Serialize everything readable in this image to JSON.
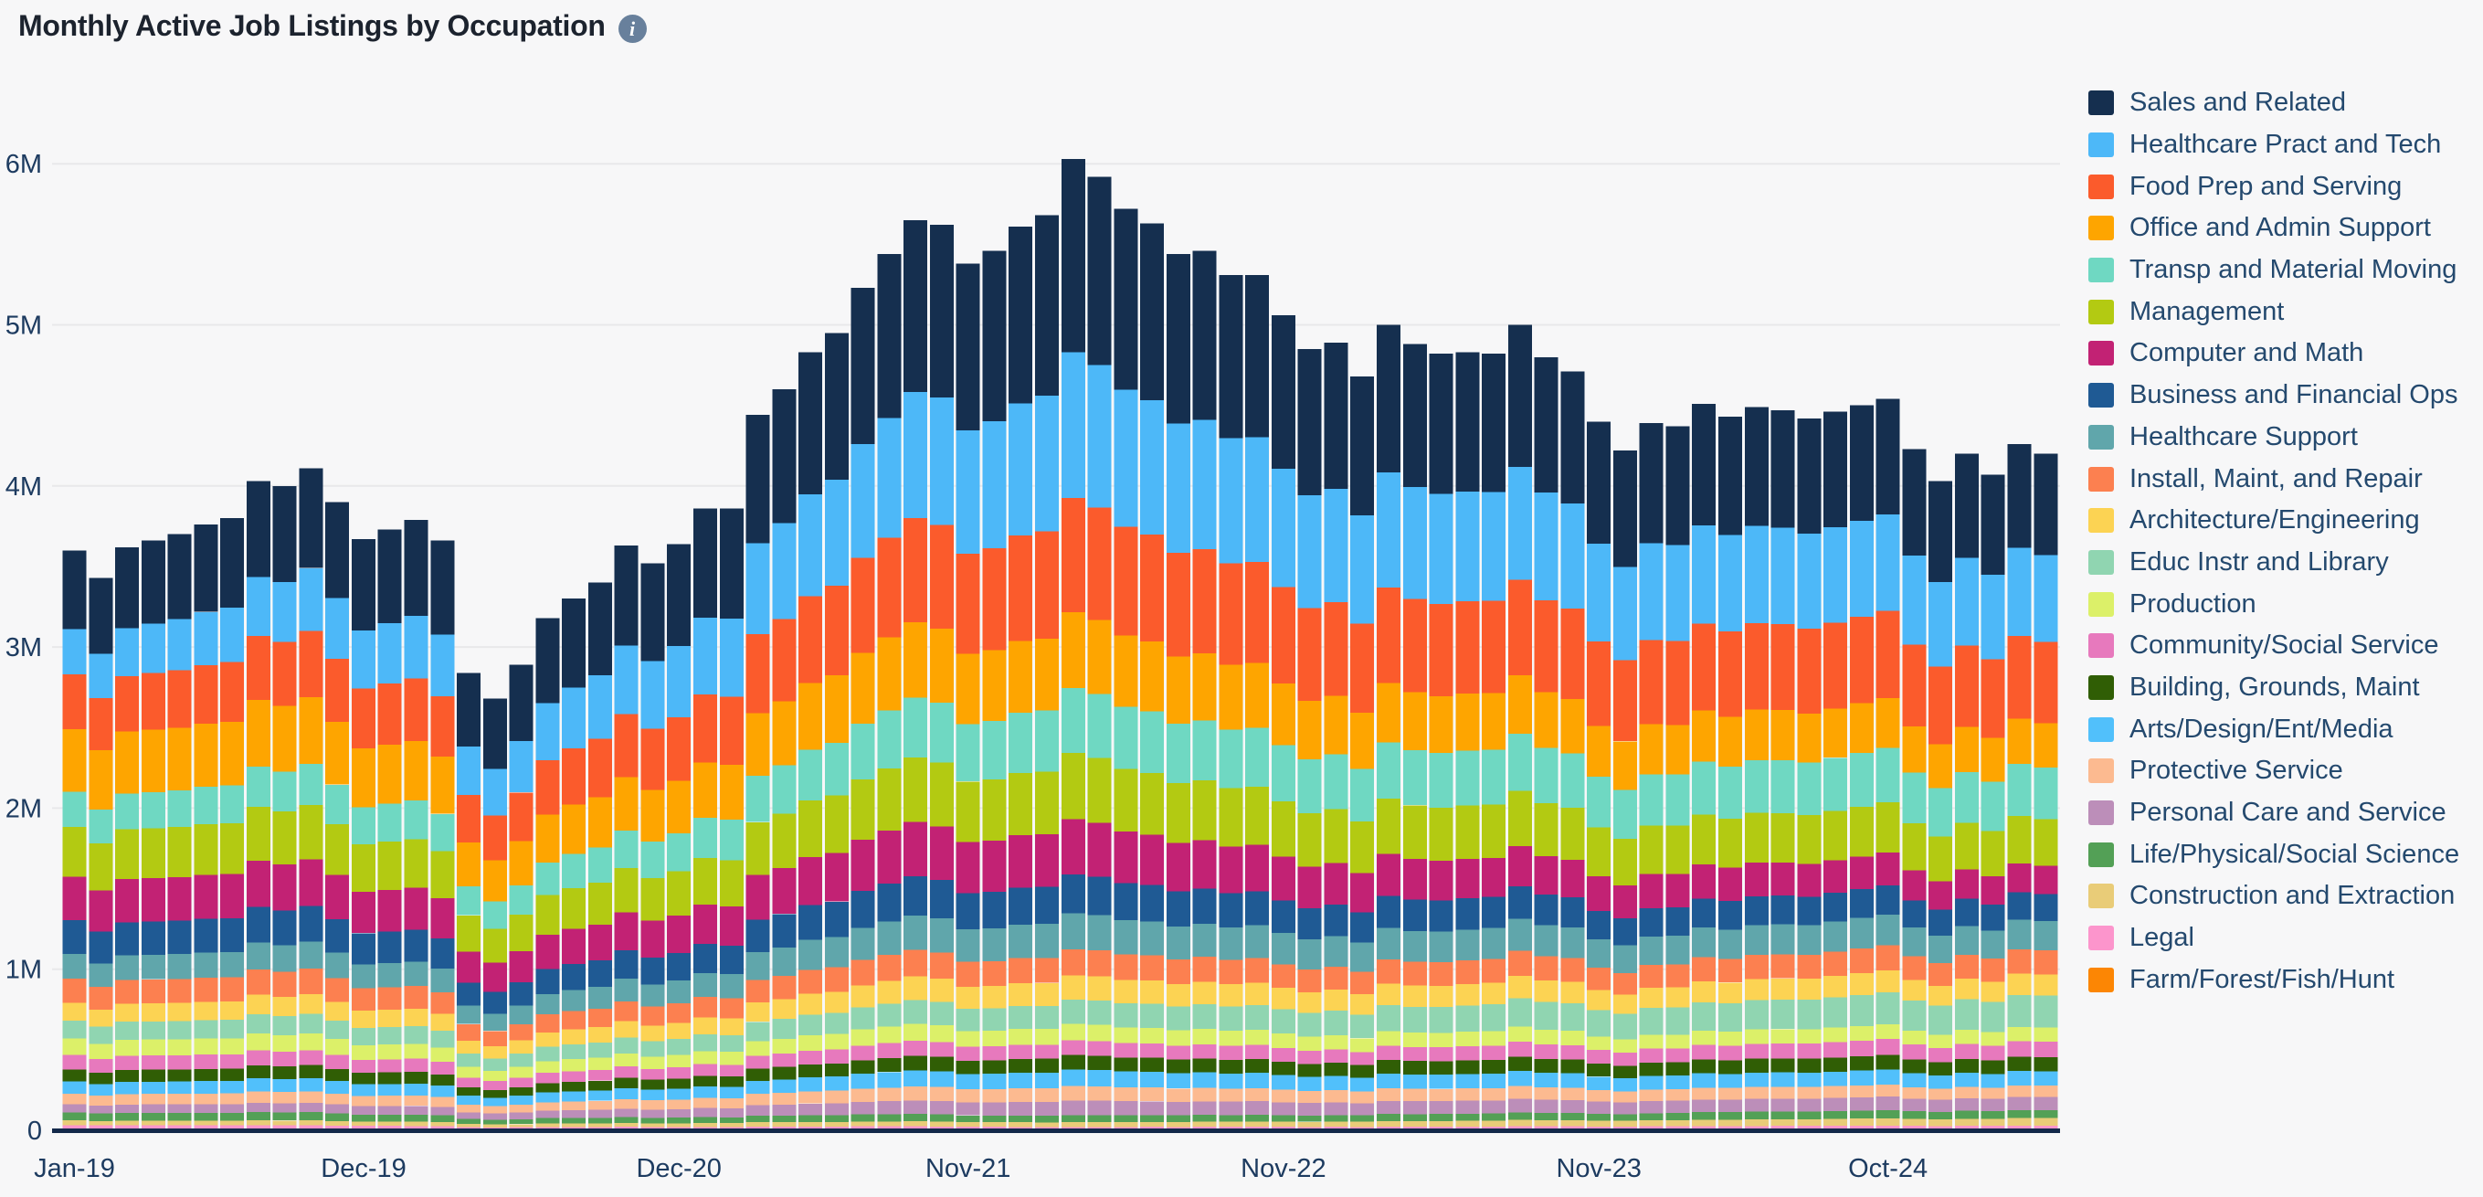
{
  "header": {
    "title": "Monthly Active Job Listings by Occupation",
    "info_glyph": "i",
    "info_color": "#68809c"
  },
  "chart_data": {
    "type": "bar",
    "stacked": true,
    "title": "Monthly Active Job Listings by Occupation",
    "legend_position": "right",
    "grid": true,
    "units": "millions of listings",
    "x": [
      "Jan-19",
      "Feb-19",
      "Mar-19",
      "Apr-19",
      "May-19",
      "Jun-19",
      "Jul-19",
      "Aug-19",
      "Sep-19",
      "Oct-19",
      "Nov-19",
      "Dec-19",
      "Jan-20",
      "Feb-20",
      "Mar-20",
      "Apr-20",
      "May-20",
      "Jun-20",
      "Jul-20",
      "Aug-20",
      "Sep-20",
      "Oct-20",
      "Nov-20",
      "Dec-20",
      "Jan-21",
      "Feb-21",
      "Mar-21",
      "Apr-21",
      "May-21",
      "Jun-21",
      "Jul-21",
      "Aug-21",
      "Sep-21",
      "Oct-21",
      "Nov-21",
      "Dec-21",
      "Jan-22",
      "Feb-22",
      "Mar-22",
      "Apr-22",
      "May-22",
      "Jun-22",
      "Jul-22",
      "Aug-22",
      "Sep-22",
      "Oct-22",
      "Nov-22",
      "Dec-22",
      "Jan-23",
      "Feb-23",
      "Mar-23",
      "Apr-23",
      "May-23",
      "Jun-23",
      "Jul-23",
      "Aug-23",
      "Sep-23",
      "Oct-23",
      "Nov-23",
      "Dec-23",
      "Jan-24",
      "Feb-24",
      "Mar-24",
      "Apr-24",
      "May-24",
      "Jun-24",
      "Jul-24",
      "Aug-24",
      "Sep-24",
      "Oct-24",
      "Nov-24",
      "Dec-24",
      "Jan-25",
      "Feb-25",
      "Mar-25",
      "Apr-25"
    ],
    "totals_millions": [
      3.6,
      3.43,
      3.62,
      3.66,
      3.7,
      3.76,
      3.8,
      4.03,
      4.0,
      4.11,
      3.9,
      3.67,
      3.73,
      3.79,
      3.66,
      2.84,
      2.68,
      2.89,
      3.18,
      3.3,
      3.4,
      3.63,
      3.52,
      3.64,
      3.86,
      3.86,
      4.44,
      4.6,
      4.83,
      4.95,
      5.23,
      5.44,
      5.65,
      5.62,
      5.38,
      5.46,
      5.61,
      5.68,
      6.03,
      5.92,
      5.72,
      5.63,
      5.44,
      5.46,
      5.31,
      5.31,
      5.06,
      4.85,
      4.89,
      4.68,
      5.0,
      4.88,
      4.82,
      4.83,
      4.82,
      5.0,
      4.8,
      4.71,
      4.4,
      4.22,
      4.39,
      4.37,
      4.51,
      4.43,
      4.49,
      4.47,
      4.42,
      4.46,
      4.5,
      4.54,
      4.23,
      4.03,
      4.2,
      4.07,
      4.26,
      4.2
    ],
    "share_anchor_month_indices": [
      0,
      38,
      75
    ],
    "share_anchor_labels": [
      "Jan-19",
      "Mar-22",
      "Apr-25"
    ],
    "series": [
      {
        "name": "Sales and Related",
        "color": "#152f4f",
        "share_anchors": [
          0.136,
          0.199,
          0.15
        ]
      },
      {
        "name": "Healthcare Pract and Tech",
        "color": "#4db8f8",
        "share_anchors": [
          0.078,
          0.15,
          0.128
        ]
      },
      {
        "name": "Food Prep and Serving",
        "color": "#fb5b2c",
        "share_anchors": [
          0.094,
          0.118,
          0.12
        ]
      },
      {
        "name": "Office and Admin Support",
        "color": "#fea500",
        "share_anchors": [
          0.108,
          0.078,
          0.066
        ]
      },
      {
        "name": "Transp and Material Moving",
        "color": "#6fd8c2",
        "share_anchors": [
          0.061,
          0.067,
          0.076
        ]
      },
      {
        "name": "Management",
        "color": "#b3ca12",
        "share_anchors": [
          0.086,
          0.068,
          0.069
        ]
      },
      {
        "name": "Computer and Math",
        "color": "#c22274",
        "share_anchors": [
          0.075,
          0.057,
          0.042
        ]
      },
      {
        "name": "Business and Financial Ops",
        "color": "#1f5a94",
        "share_anchors": [
          0.058,
          0.04,
          0.04
        ]
      },
      {
        "name": "Healthcare Support",
        "color": "#60a6ab",
        "share_anchors": [
          0.042,
          0.037,
          0.043
        ]
      },
      {
        "name": "Install, Maint, and Repair",
        "color": "#fc8050",
        "share_anchors": [
          0.042,
          0.027,
          0.036
        ]
      },
      {
        "name": "Architecture/Engineering",
        "color": "#fcd353",
        "share_anchors": [
          0.031,
          0.025,
          0.031
        ]
      },
      {
        "name": "Educ Instr and Library",
        "color": "#90d5b1",
        "share_anchors": [
          0.031,
          0.025,
          0.047
        ]
      },
      {
        "name": "Production",
        "color": "#dcf069",
        "share_anchors": [
          0.028,
          0.017,
          0.021
        ]
      },
      {
        "name": "Community/Social Service",
        "color": "#e779bd",
        "share_anchors": [
          0.025,
          0.015,
          0.023
        ]
      },
      {
        "name": "Building, Grounds, Maint",
        "color": "#305e05",
        "share_anchors": [
          0.021,
          0.015,
          0.021
        ]
      },
      {
        "name": "Arts/Design/Ent/Media",
        "color": "#51c0fb",
        "share_anchors": [
          0.021,
          0.017,
          0.021
        ]
      },
      {
        "name": "Protective Service",
        "color": "#fcba90",
        "share_anchors": [
          0.018,
          0.015,
          0.017
        ]
      },
      {
        "name": "Personal Care and Service",
        "color": "#bc8eb9",
        "share_anchors": [
          0.014,
          0.015,
          0.019
        ]
      },
      {
        "name": "Life/Physical/Social Science",
        "color": "#53a056",
        "share_anchors": [
          0.014,
          0.007,
          0.012
        ]
      },
      {
        "name": "Construction and Extraction",
        "color": "#e9cc78",
        "share_anchors": [
          0.008,
          0.005,
          0.011
        ]
      },
      {
        "name": "Legal",
        "color": "#fc95cc",
        "share_anchors": [
          0.006,
          0.0025,
          0.005
        ]
      },
      {
        "name": "Farm/Forest/Fish/Hunt",
        "color": "#fc8604",
        "share_anchors": [
          0.003,
          0.001,
          0.002
        ]
      }
    ],
    "stack_order_note": "bottom of stack is last legend item; top of stack is first legend item",
    "x_axis": {
      "tick_labels": [
        "Jan-19",
        "Dec-19",
        "Dec-20",
        "Nov-21",
        "Nov-22",
        "Nov-23",
        "Oct-24"
      ],
      "tick_month_indices": [
        0,
        11,
        23,
        34,
        46,
        58,
        69
      ]
    },
    "y_axis": {
      "ticks": [
        "0",
        "1M",
        "2M",
        "3M",
        "4M",
        "5M",
        "6M"
      ],
      "tick_values_millions": [
        0,
        1,
        2,
        3,
        4,
        5,
        6
      ]
    },
    "ylim_millions": [
      0,
      6.4
    ],
    "style": {
      "background": "#f7f7f8",
      "grid_color": "#e8e8ea",
      "axis_text_color": "#1d3b60",
      "axis_line_color": "#13294a"
    }
  }
}
